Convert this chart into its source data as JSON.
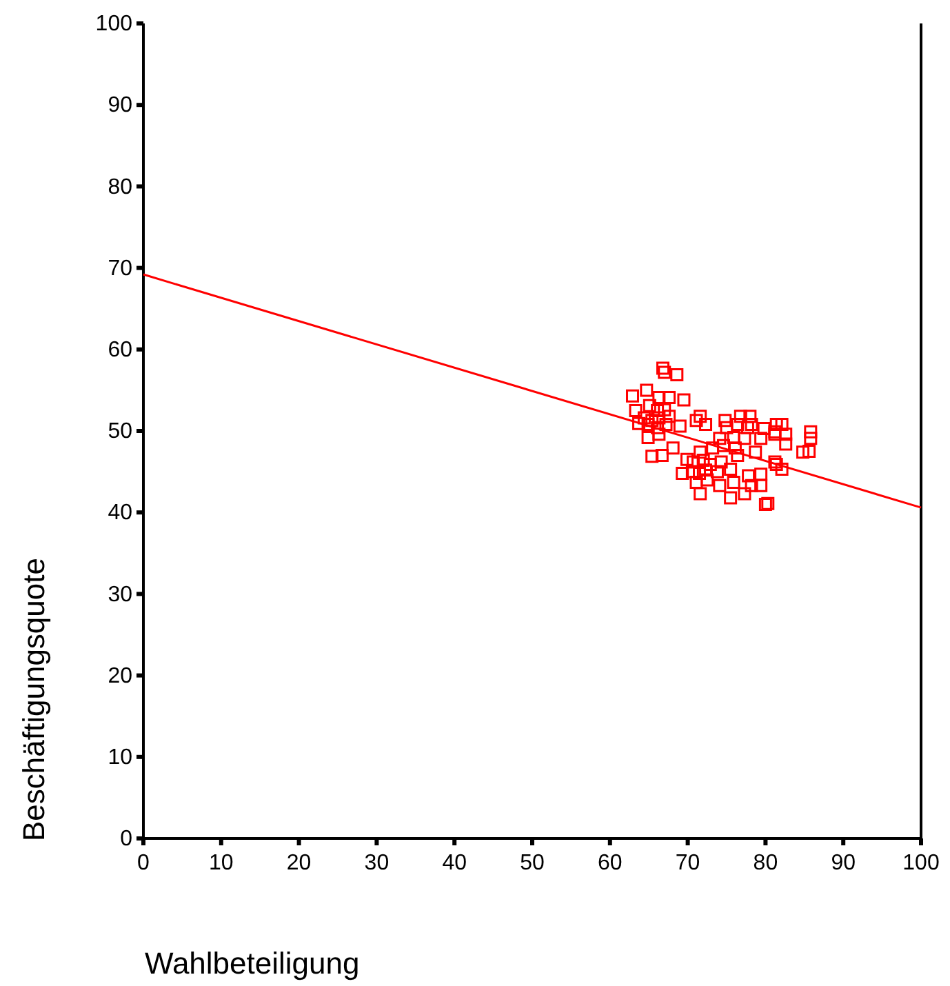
{
  "chart_data": {
    "type": "scatter",
    "xlabel": "Wahlbeteiligung",
    "ylabel": "Beschäftigungsquote",
    "xlim": [
      0,
      100
    ],
    "ylim": [
      0,
      100
    ],
    "xticks": [
      0,
      10,
      20,
      30,
      40,
      50,
      60,
      70,
      80,
      90,
      100
    ],
    "yticks": [
      0,
      10,
      20,
      30,
      40,
      50,
      60,
      70,
      80,
      90,
      100
    ],
    "grid": false,
    "series": [
      {
        "color": "#ff0000",
        "marker": "square",
        "x": [
          66.8,
          68.6,
          67,
          62.9,
          64.7,
          66.3,
          67.6,
          69.5,
          63.3,
          65.1,
          66.1,
          67,
          64.4,
          65.4,
          66.3,
          67.6,
          63.7,
          64.9,
          66.1,
          67.2,
          69,
          64.9,
          66.3,
          65.4,
          66.7,
          68.1,
          71.6,
          71.1,
          72.3,
          74.8,
          76.8,
          78,
          75,
          76.4,
          77.7,
          78.2,
          79.8,
          81.4,
          74.1,
          75.9,
          77.3,
          79.4,
          81.2,
          76.1,
          74.6,
          73.2,
          71.6,
          69.9,
          70.7,
          72,
          72.9,
          74.3,
          76.4,
          78.7,
          81.2,
          69.3,
          70.6,
          71.5,
          72.3,
          73.8,
          75.5,
          77.8,
          79.4,
          71.1,
          72.5,
          74.1,
          75.9,
          78.2,
          79.4,
          71.6,
          75.5,
          77.3,
          80.3,
          82.1,
          81.2,
          82.6,
          82.6,
          85.8,
          85.8,
          85.6,
          84.8,
          81.4,
          82.1,
          80
        ],
        "values": [
          57.7,
          56.9,
          57.2,
          54.3,
          55,
          54.1,
          54.1,
          53.8,
          52.5,
          53.1,
          52.5,
          52.6,
          51.6,
          51.3,
          51.6,
          51.8,
          50.9,
          50.8,
          50.4,
          50.8,
          50.6,
          49.2,
          49.6,
          46.9,
          47,
          47.9,
          51.8,
          51.3,
          50.8,
          51.3,
          51.8,
          51.8,
          50.4,
          50.8,
          50.4,
          50.8,
          50.3,
          50.8,
          49.1,
          49.2,
          49.1,
          49.1,
          49.6,
          47.9,
          48.2,
          47.9,
          47.4,
          46.5,
          46.2,
          46.4,
          45.9,
          46.2,
          47,
          47.4,
          46.2,
          44.8,
          45,
          44.8,
          45.2,
          45,
          45.3,
          44.5,
          44.7,
          43.7,
          44,
          43.3,
          43.7,
          43.3,
          43.3,
          42.3,
          41.8,
          42.3,
          41.1,
          50.8,
          49.9,
          49.6,
          48.4,
          49.9,
          49.1,
          47.5,
          47.4,
          45.9,
          45.3,
          41
        ]
      },
      {
        "type": "line",
        "color": "#ff0000",
        "x": [
          0,
          100
        ],
        "values": [
          69.2,
          40.6
        ],
        "line_style": "solid"
      }
    ]
  }
}
